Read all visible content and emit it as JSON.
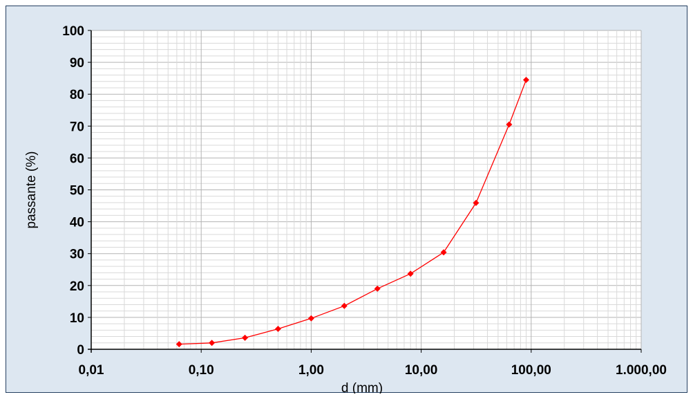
{
  "chart_data": {
    "type": "line",
    "title": "",
    "xlabel": "d (mm)",
    "ylabel": "passante (%)",
    "x_scale": "log",
    "xlim": [
      0.01,
      1000
    ],
    "ylim": [
      0,
      100
    ],
    "x_ticks": [
      0.01,
      0.1,
      1,
      10,
      100,
      1000
    ],
    "x_tick_labels": [
      "0,01",
      "0,10",
      "1,00",
      "10,00",
      "100,00",
      "1.000,00"
    ],
    "y_ticks": [
      0,
      10,
      20,
      30,
      40,
      50,
      60,
      70,
      80,
      90,
      100
    ],
    "y_tick_labels": [
      "0",
      "10",
      "20",
      "30",
      "40",
      "50",
      "60",
      "70",
      "80",
      "90",
      "100"
    ],
    "grid": true,
    "legend": "none",
    "series": [
      {
        "color": "#ff0000",
        "marker": "diamond",
        "x": [
          0.063,
          0.125,
          0.25,
          0.5,
          1,
          2,
          4,
          8,
          16,
          31.5,
          63,
          90
        ],
        "y": [
          1.6,
          2.0,
          3.6,
          6.4,
          9.7,
          13.6,
          19.0,
          23.7,
          30.4,
          45.9,
          70.5,
          84.5
        ]
      }
    ],
    "colors": {
      "background": "#dde7f1",
      "plot_area": "#ffffff",
      "major_grid": "#b3b3b3",
      "minor_grid": "#d9d9d9",
      "frame_border": "#243f60"
    }
  }
}
